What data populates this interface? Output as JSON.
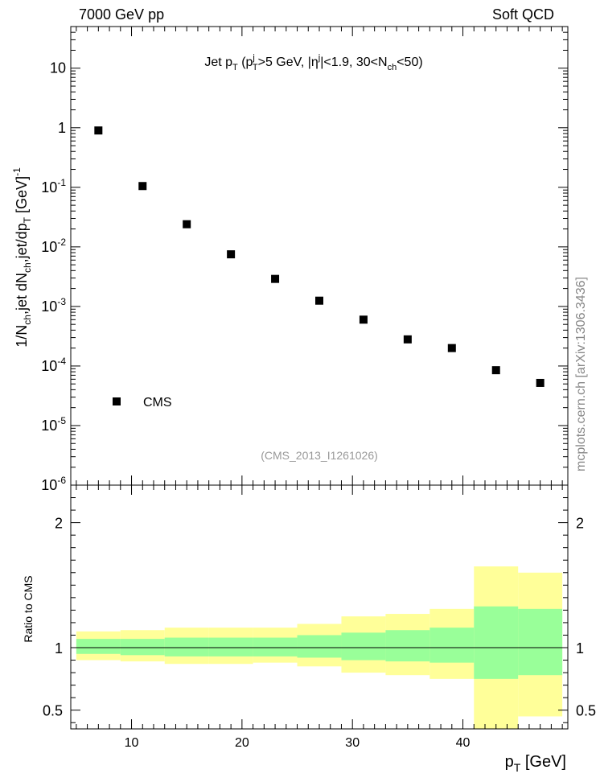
{
  "header": {
    "left": "7000 GeV pp",
    "right": "Soft QCD"
  },
  "side_label": "mcplots.cern.ch [arXiv:1306.3436]",
  "analysis_tag": "(CMS_2013_I1261026)",
  "colors": {
    "yellow": "#ffff99",
    "green": "#99ff99",
    "marker": "#000000",
    "tag": "#999999"
  },
  "chart_data": [
    {
      "type": "scatter",
      "title": "Jet pT (pTj>5 GeV, |ηj|<1.9, 30<Nch<50)",
      "xlabel": "pT [GeV]",
      "ylabel": "1/Nch,jet dNch,jet/dpT [GeV]-1",
      "xlim": [
        4.5,
        49.5
      ],
      "ylim": [
        1e-06,
        50
      ],
      "yscale": "log",
      "yticks": [
        "10^-6",
        "10^-5",
        "10^-4",
        "10^-3",
        "10^-2",
        "10^-1",
        "1",
        "10"
      ],
      "legend": {
        "position": "bottom-left",
        "entries": [
          "CMS"
        ]
      },
      "series": [
        {
          "name": "CMS",
          "x": [
            7,
            11,
            15,
            19,
            23,
            27,
            31,
            35,
            39,
            43,
            47
          ],
          "y": [
            0.9,
            0.105,
            0.024,
            0.0075,
            0.0029,
            0.00125,
            0.0006,
            0.00028,
            0.0002,
            8.5e-05,
            5.2e-05
          ]
        }
      ]
    },
    {
      "type": "area",
      "ylabel": "Ratio to CMS",
      "xlabel": "pT [GeV]",
      "xlim": [
        4.5,
        49.5
      ],
      "ylim": [
        0.35,
        2.3
      ],
      "xticks": [
        10,
        20,
        30,
        40
      ],
      "yticks": [
        0.5,
        1,
        2
      ],
      "bin_edges": [
        5,
        9,
        13,
        17,
        21,
        25,
        29,
        33,
        37,
        41,
        45,
        49
      ],
      "band_outer": {
        "lo": [
          0.9,
          0.89,
          0.87,
          0.87,
          0.88,
          0.85,
          0.8,
          0.78,
          0.75,
          0.35,
          0.45
        ],
        "hi": [
          1.13,
          1.14,
          1.16,
          1.16,
          1.16,
          1.19,
          1.25,
          1.27,
          1.31,
          1.65,
          1.6
        ]
      },
      "band_inner": {
        "lo": [
          0.95,
          0.94,
          0.93,
          0.93,
          0.93,
          0.92,
          0.9,
          0.89,
          0.88,
          0.75,
          0.78
        ],
        "hi": [
          1.07,
          1.07,
          1.08,
          1.08,
          1.08,
          1.1,
          1.12,
          1.14,
          1.16,
          1.33,
          1.31
        ]
      }
    }
  ]
}
